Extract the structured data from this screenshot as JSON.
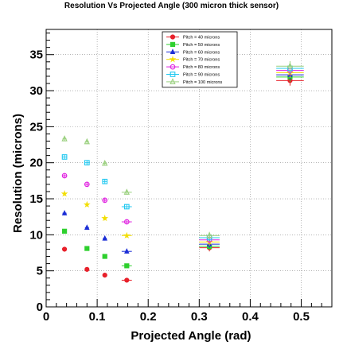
{
  "chart_data": {
    "type": "scatter",
    "title": "Resolution Vs Projected Angle (300 micron thick sensor)",
    "xlabel": "Projected Angle (rad)",
    "ylabel": "Resolution (microns)",
    "xlim": [
      0,
      0.56
    ],
    "ylim": [
      0,
      38.5
    ],
    "x_ticks": [
      0,
      0.1,
      0.2,
      0.3,
      0.4,
      0.5
    ],
    "x_tick_labels": [
      "0",
      "0.1",
      "0.2",
      "0.3",
      "0.4",
      "0.5"
    ],
    "y_ticks": [
      0,
      5,
      10,
      15,
      20,
      25,
      30,
      35
    ],
    "y_tick_labels": [
      "0",
      "5",
      "10",
      "15",
      "20",
      "25",
      "30",
      "35"
    ],
    "grid": true,
    "legend_position": "top-center",
    "series": [
      {
        "name": "Pitch = 40 microns",
        "color": "#e8202a",
        "marker": "circle",
        "x": [
          0.036,
          0.08,
          0.115,
          0.158,
          0.32,
          0.478
        ],
        "y": [
          8.0,
          5.2,
          4.4,
          3.7,
          8.2,
          31.4
        ],
        "xerr": [
          0.004,
          0.004,
          0.004,
          0.01,
          0.02,
          0.027
        ],
        "yerr": [
          0.3,
          0.3,
          0.3,
          0.3,
          0.5,
          0.7
        ]
      },
      {
        "name": "Pitch = 50 microns",
        "color": "#2ed02e",
        "marker": "square",
        "x": [
          0.036,
          0.08,
          0.115,
          0.158,
          0.32,
          0.478
        ],
        "y": [
          10.5,
          8.1,
          7.0,
          5.7,
          8.4,
          31.9
        ],
        "xerr": [
          0.004,
          0.004,
          0.004,
          0.01,
          0.02,
          0.027
        ],
        "yerr": [
          0.3,
          0.3,
          0.3,
          0.3,
          0.5,
          0.7
        ]
      },
      {
        "name": "Pitch = 60 microns",
        "color": "#1c2fd6",
        "marker": "triangle",
        "x": [
          0.036,
          0.08,
          0.115,
          0.158,
          0.32,
          0.478
        ],
        "y": [
          13.0,
          11.0,
          9.5,
          7.7,
          8.7,
          32.2
        ],
        "xerr": [
          0.004,
          0.004,
          0.004,
          0.01,
          0.02,
          0.027
        ],
        "yerr": [
          0.3,
          0.3,
          0.3,
          0.3,
          0.5,
          0.7
        ]
      },
      {
        "name": "Pitch = 70 microns",
        "color": "#f2de00",
        "marker": "star",
        "x": [
          0.036,
          0.08,
          0.115,
          0.158,
          0.32,
          0.478
        ],
        "y": [
          15.7,
          14.2,
          12.3,
          9.9,
          9.0,
          32.5
        ],
        "xerr": [
          0.004,
          0.004,
          0.004,
          0.01,
          0.02,
          0.027
        ],
        "yerr": [
          0.3,
          0.3,
          0.3,
          0.3,
          0.5,
          0.7
        ]
      },
      {
        "name": "Pitch = 80 microns",
        "color": "#e020e0",
        "marker": "open-circle",
        "x": [
          0.036,
          0.08,
          0.115,
          0.158,
          0.32,
          0.478
        ],
        "y": [
          18.2,
          17.0,
          14.8,
          11.8,
          9.3,
          32.8
        ],
        "xerr": [
          0.004,
          0.004,
          0.004,
          0.01,
          0.02,
          0.027
        ],
        "yerr": [
          0.3,
          0.3,
          0.3,
          0.3,
          0.5,
          0.7
        ]
      },
      {
        "name": "Pitch = 90 microns",
        "color": "#20c8f0",
        "marker": "open-square",
        "x": [
          0.036,
          0.08,
          0.115,
          0.158,
          0.32,
          0.478
        ],
        "y": [
          20.8,
          20.0,
          17.4,
          13.9,
          9.6,
          33.1
        ],
        "xerr": [
          0.004,
          0.004,
          0.004,
          0.01,
          0.02,
          0.027
        ],
        "yerr": [
          0.3,
          0.3,
          0.3,
          0.3,
          0.5,
          0.7
        ]
      },
      {
        "name": "Pitch = 100 microns",
        "color": "#9ad07e",
        "marker": "open-triangle",
        "x": [
          0.036,
          0.08,
          0.115,
          0.158,
          0.32,
          0.478
        ],
        "y": [
          23.3,
          22.9,
          19.9,
          15.9,
          9.9,
          33.4
        ],
        "xerr": [
          0.004,
          0.004,
          0.004,
          0.01,
          0.02,
          0.027
        ],
        "yerr": [
          0.3,
          0.3,
          0.3,
          0.3,
          0.5,
          0.7
        ]
      }
    ]
  }
}
